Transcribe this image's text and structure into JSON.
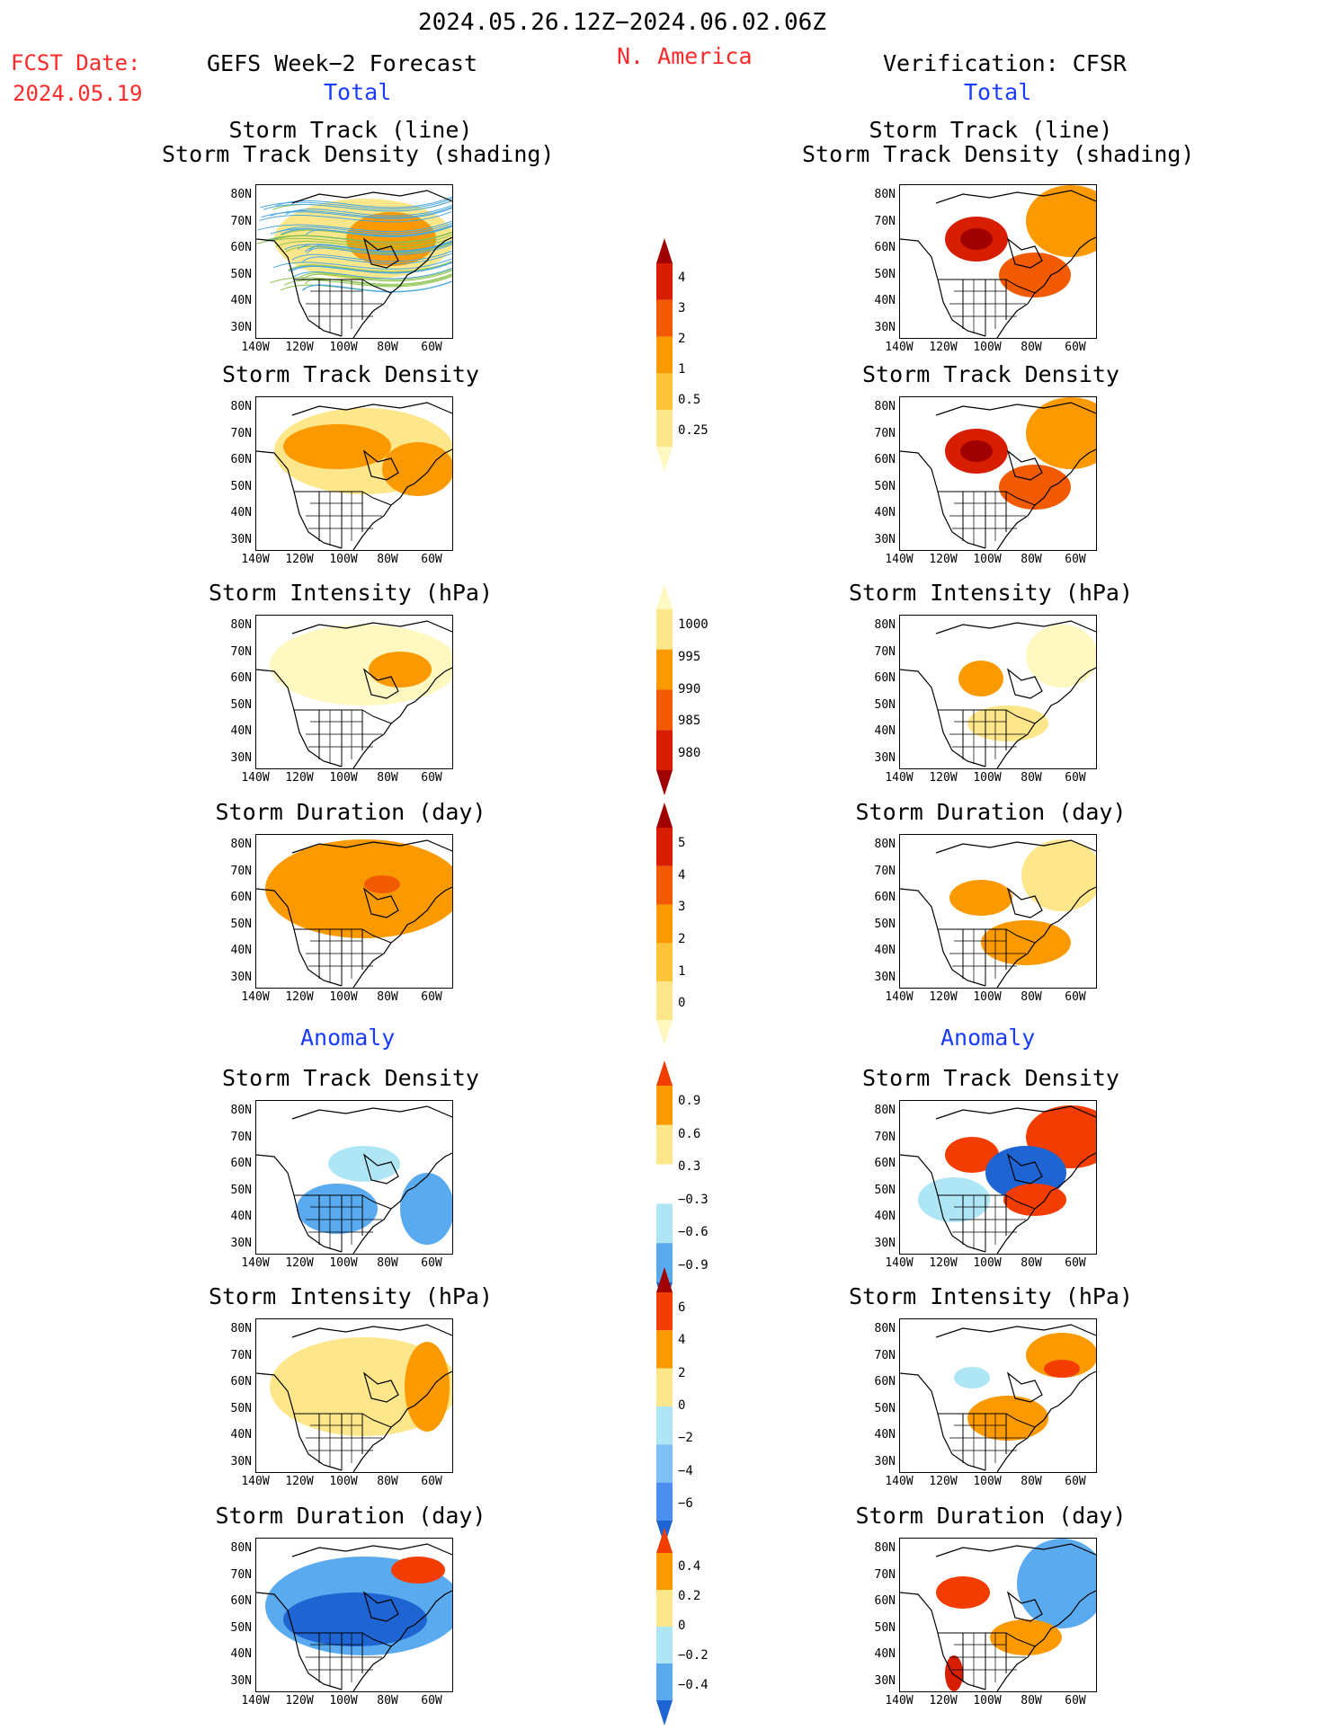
{
  "header": {
    "period": "2024.05.26.12Z−2024.06.02.06Z",
    "fcst_label": "FCST Date:",
    "fcst_date": "2024.05.19",
    "left_title": "GEFS Week−2 Forecast",
    "region": "N. America",
    "right_title": "Verification: CFSR",
    "left_total": "Total",
    "right_total": "Total",
    "left_anomaly": "Anomaly",
    "right_anomaly": "Anomaly"
  },
  "axes": {
    "lat_ticks": [
      "80N",
      "70N",
      "60N",
      "50N",
      "40N",
      "30N"
    ],
    "lon_ticks": [
      "140W",
      "120W",
      "100W",
      "80W",
      "60W"
    ]
  },
  "panel_titles": {
    "track_line": "Storm Track (line)",
    "track_shading": "Storm Track Density (shading)",
    "density": "Storm Track Density",
    "intensity": "Storm Intensity (hPa)",
    "duration": "Storm Duration (day)"
  },
  "colorbars": {
    "density": {
      "labels": [
        "4",
        "3",
        "2",
        "1",
        "0.5",
        "0.25"
      ],
      "colors": [
        "#a00000",
        "#d81e00",
        "#f25a00",
        "#fb9a00",
        "#fdc43a",
        "#fde78a",
        "#fff8c0"
      ]
    },
    "intensity": {
      "labels": [
        "1000",
        "995",
        "990",
        "985",
        "980"
      ],
      "colors": [
        "#fff8c0",
        "#fde78a",
        "#fb9a00",
        "#f25a00",
        "#d81e00",
        "#a00000"
      ]
    },
    "duration": {
      "labels": [
        "5",
        "4",
        "3",
        "2",
        "1",
        "0"
      ],
      "colors": [
        "#a00000",
        "#d81e00",
        "#f25a00",
        "#fb9a00",
        "#fdc43a",
        "#fde78a",
        "#fff8c0"
      ]
    },
    "density_anom": {
      "labels": [
        "0.9",
        "0.6",
        "0.3",
        "−0.3",
        "−0.6",
        "−0.9"
      ],
      "colors": [
        "#f23c00",
        "#fb9a00",
        "#fde78a",
        "#ffffff",
        "#aee6f5",
        "#5aaaf0",
        "#1e64d2"
      ]
    },
    "intensity_anom": {
      "labels": [
        "6",
        "4",
        "2",
        "0",
        "−2",
        "−4",
        "−6"
      ],
      "colors": [
        "#a00000",
        "#f23c00",
        "#fb9a00",
        "#fde78a",
        "#aee6f5",
        "#7fc0f5",
        "#4a8ef0",
        "#1e64d2"
      ]
    },
    "duration_anom": {
      "labels": [
        "0.4",
        "0.2",
        "0",
        "−0.2",
        "−0.4"
      ],
      "colors": [
        "#f23c00",
        "#fb9a00",
        "#fde78a",
        "#aee6f5",
        "#5aaaf0",
        "#1e64d2"
      ]
    }
  }
}
